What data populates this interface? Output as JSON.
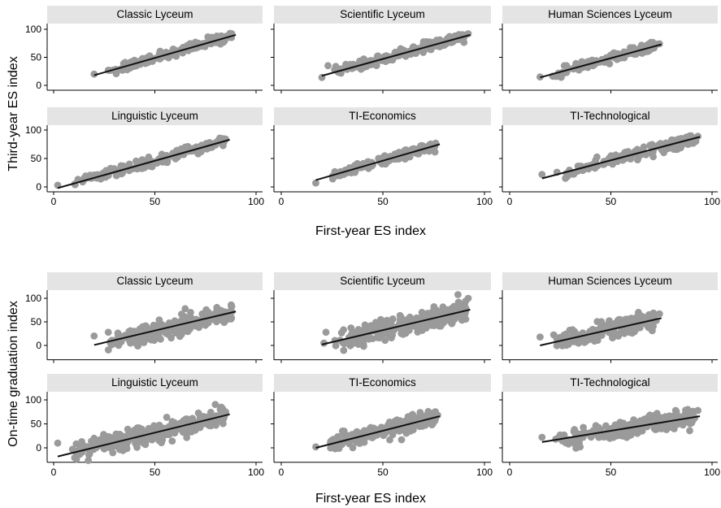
{
  "figure": {
    "top_xlabel": "First-year ES index",
    "top_ylabel": "Third-year ES index",
    "bottom_xlabel": "First-year ES index",
    "bottom_ylabel": "On-time graduation index"
  },
  "chart_data": [
    {
      "type": "scatter",
      "title": "",
      "xlabel": "First-year ES index",
      "ylabel": "Third-year ES index",
      "xlim": [
        0,
        100
      ],
      "ylim": [
        0,
        100
      ],
      "xticks": [
        0,
        50,
        100
      ],
      "yticks": [
        0,
        50,
        100
      ],
      "grid": false,
      "marker_color": "#9a9a9a",
      "fit_color": "#111111",
      "panels": [
        {
          "name": "Classic Lyceum",
          "xmin": 20,
          "xmax": 90,
          "fit": [
            [
              20,
              18
            ],
            [
              90,
              90
            ]
          ],
          "spread": 4,
          "n": 140,
          "extra_points": [
            [
              20,
              20
            ],
            [
              27,
              27
            ],
            [
              88,
              92
            ]
          ]
        },
        {
          "name": "Scientific Lyceum",
          "xmin": 20,
          "xmax": 93,
          "fit": [
            [
              20,
              17
            ],
            [
              93,
              90
            ]
          ],
          "spread": 4,
          "n": 200,
          "extra_points": [
            [
              20,
              14
            ],
            [
              23,
              35
            ],
            [
              92,
              92
            ]
          ]
        },
        {
          "name": "Human Sciences Lyceum",
          "xmin": 15,
          "xmax": 75,
          "fit": [
            [
              15,
              14
            ],
            [
              75,
              73
            ]
          ],
          "spread": 4,
          "n": 140,
          "extra_points": [
            [
              15,
              15
            ],
            [
              27,
              35
            ],
            [
              74,
              74
            ]
          ]
        },
        {
          "name": "Linguistic Lyceum",
          "xmin": 2,
          "xmax": 87,
          "fit": [
            [
              2,
              -2
            ],
            [
              87,
              83
            ]
          ],
          "spread": 4,
          "n": 170,
          "extra_points": [
            [
              2,
              3
            ],
            [
              20,
              21
            ],
            [
              85,
              84
            ]
          ]
        },
        {
          "name": "TI-Economics",
          "xmin": 17,
          "xmax": 78,
          "fit": [
            [
              17,
              12
            ],
            [
              78,
              75
            ]
          ],
          "spread": 3.5,
          "n": 160,
          "extra_points": [
            [
              17,
              7
            ],
            [
              76,
              77
            ]
          ]
        },
        {
          "name": "TI-Technological",
          "xmin": 16,
          "xmax": 94,
          "fit": [
            [
              16,
              15
            ],
            [
              94,
              88
            ]
          ],
          "spread": 4.5,
          "n": 170,
          "extra_points": [
            [
              16,
              22
            ],
            [
              93,
              89
            ]
          ]
        }
      ]
    },
    {
      "type": "scatter",
      "title": "",
      "xlabel": "First-year ES index",
      "ylabel": "On-time graduation index",
      "xlim": [
        0,
        100
      ],
      "ylim": [
        -20,
        100
      ],
      "xticks": [
        0,
        50,
        100
      ],
      "yticks": [
        0,
        50,
        100
      ],
      "grid": false,
      "marker_color": "#9a9a9a",
      "fit_color": "#111111",
      "panels": [
        {
          "name": "Classic Lyceum",
          "xmin": 20,
          "xmax": 90,
          "fit": [
            [
              20,
              1
            ],
            [
              90,
              72
            ]
          ],
          "spread": 9,
          "n": 260,
          "extra_points": [
            [
              20,
              20
            ],
            [
              27,
              28
            ],
            [
              65,
              78
            ],
            [
              88,
              83
            ]
          ]
        },
        {
          "name": "Scientific Lyceum",
          "xmin": 20,
          "xmax": 93,
          "fit": [
            [
              20,
              2
            ],
            [
              93,
              76
            ]
          ],
          "spread": 10,
          "n": 300,
          "extra_points": [
            [
              22,
              28
            ],
            [
              92,
              100
            ],
            [
              21,
              5
            ]
          ]
        },
        {
          "name": "Human Sciences Lyceum",
          "xmin": 15,
          "xmax": 75,
          "fit": [
            [
              15,
              0
            ],
            [
              75,
              58
            ]
          ],
          "spread": 9,
          "n": 220,
          "extra_points": [
            [
              15,
              18
            ],
            [
              74,
              67
            ],
            [
              34,
              5
            ]
          ]
        },
        {
          "name": "Linguistic Lyceum",
          "xmin": 2,
          "xmax": 87,
          "fit": [
            [
              2,
              -18
            ],
            [
              87,
              70
            ]
          ],
          "spread": 9,
          "n": 300,
          "extra_points": [
            [
              2,
              10
            ],
            [
              20,
              20
            ],
            [
              85,
              75
            ]
          ]
        },
        {
          "name": "TI-Economics",
          "xmin": 17,
          "xmax": 78,
          "fit": [
            [
              17,
              0
            ],
            [
              78,
              66
            ]
          ],
          "spread": 8,
          "n": 260,
          "extra_points": [
            [
              17,
              2
            ],
            [
              77,
              68
            ]
          ]
        },
        {
          "name": "TI-Technological",
          "xmin": 16,
          "xmax": 94,
          "fit": [
            [
              16,
              12
            ],
            [
              94,
              66
            ]
          ],
          "spread": 9,
          "n": 260,
          "extra_points": [
            [
              16,
              22
            ],
            [
              82,
              78
            ],
            [
              88,
              80
            ],
            [
              93,
              78
            ],
            [
              86,
              55
            ]
          ]
        }
      ]
    }
  ]
}
